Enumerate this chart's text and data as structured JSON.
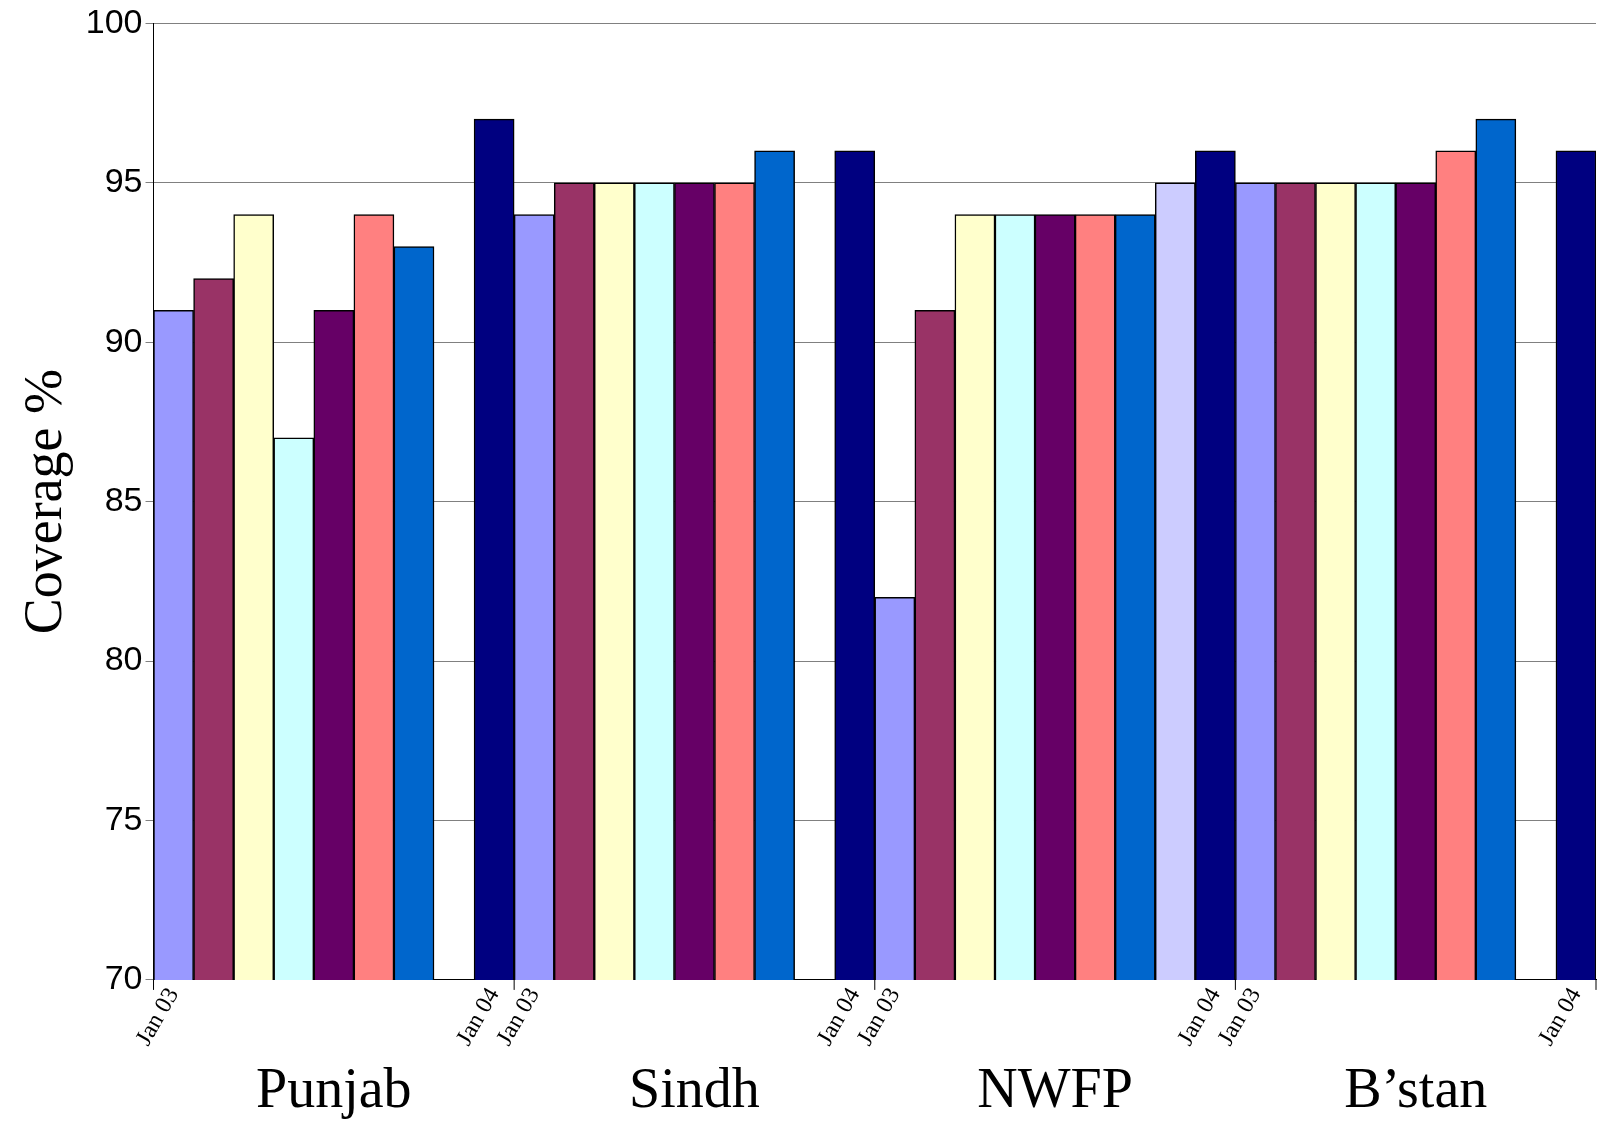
{
  "chart_data": {
    "type": "bar",
    "ylabel": "Coverage %",
    "categories": [
      "Jan 03",
      null,
      null,
      null,
      null,
      null,
      null,
      null,
      "Jan 04",
      "Jan 03",
      null,
      null,
      null,
      null,
      null,
      null,
      null,
      "Jan 04",
      "Jan 03",
      null,
      null,
      null,
      null,
      null,
      null,
      null,
      "Jan 04",
      "Jan 03",
      null,
      null,
      null,
      null,
      null,
      null,
      null,
      "Jan 04"
    ],
    "values": [
      91,
      92,
      94,
      87,
      91,
      94,
      93,
      null,
      97,
      94,
      95,
      95,
      95,
      95,
      95,
      96,
      null,
      96,
      82,
      91,
      94,
      94,
      94,
      94,
      94,
      95,
      96,
      95,
      95,
      95,
      95,
      95,
      96,
      97,
      null,
      96
    ],
    "colors": [
      "#9999ff",
      "#993366",
      "#ffffcc",
      "#ccffff",
      "#660066",
      "#ff8080",
      "#0066cc",
      "#ccccff",
      "#000080",
      "#9999ff",
      "#993366",
      "#ffffcc",
      "#ccffff",
      "#660066",
      "#ff8080",
      "#0066cc",
      "#ccccff",
      "#000080",
      "#9999ff",
      "#993366",
      "#ffffcc",
      "#ccffff",
      "#660066",
      "#ff8080",
      "#0066cc",
      "#ccccff",
      "#000080",
      "#9999ff",
      "#993366",
      "#ffffcc",
      "#ccffff",
      "#660066",
      "#ff8080",
      "#0066cc",
      "#ccccff",
      "#000080"
    ],
    "annotations": [
      "Punjab",
      "Sindh",
      "NWFP",
      "B’stan"
    ],
    "ylim": [
      70,
      100
    ],
    "yticks": [
      70,
      75,
      80,
      85,
      90,
      95,
      100
    ],
    "grid": "y",
    "legend": false
  }
}
